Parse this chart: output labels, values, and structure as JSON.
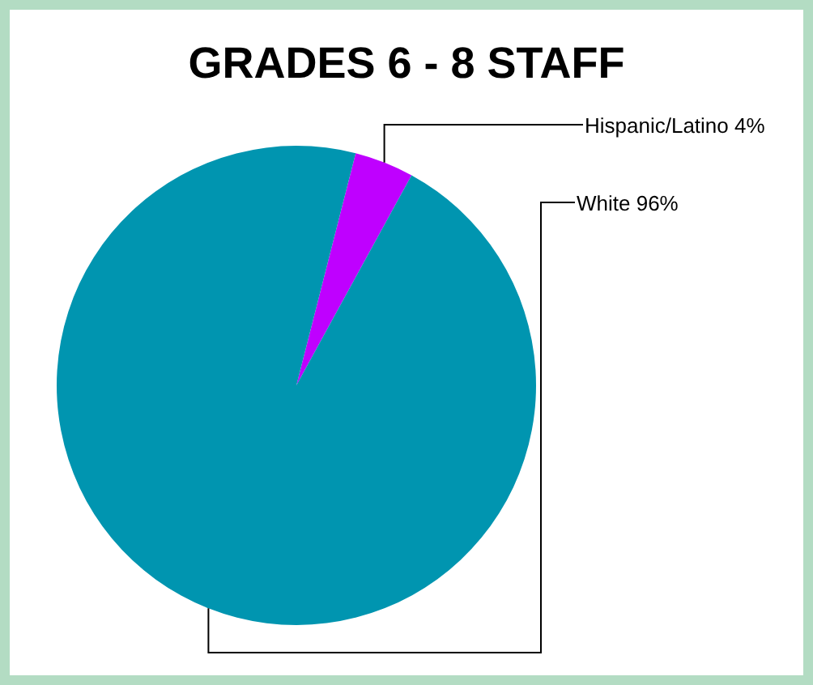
{
  "chart_data": {
    "type": "pie",
    "title": "GRADES 6 - 8 STAFF",
    "categories": [
      "Hispanic/Latino",
      "White"
    ],
    "values": [
      4,
      96
    ],
    "colors": [
      "#bf00ff",
      "#0095b0"
    ],
    "value_labels": [
      "4%",
      "96%"
    ]
  }
}
